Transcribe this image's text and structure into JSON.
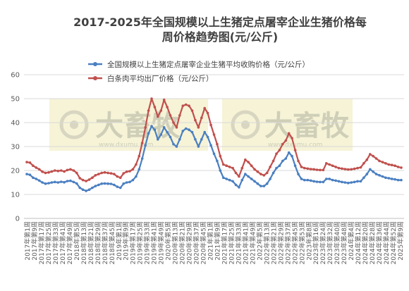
{
  "chart_data": {
    "type": "line",
    "title_line1": "2017-2025年全国规模以上生猪定点屠宰企业生猪价格每",
    "title_line2": "周价格趋势图(元/公斤)",
    "ylim": [
      0,
      60
    ],
    "yticks": [
      0,
      10,
      20,
      30,
      40,
      50,
      60
    ],
    "legend_position": "top-right",
    "grid": true,
    "watermark": {
      "text": "大畜牧",
      "url": "www.dxumu.com",
      "color": "#e6e2a8"
    },
    "x_tick_labels": [
      "2017年第1周",
      "2017年第9周",
      "2017年第17周",
      "2017年第25周",
      "2017年第33周",
      "2017年第41周",
      "2017年第49周",
      "2018年第5周",
      "2018年第13周",
      "2018年第21周",
      "2018年第29周",
      "2018年第37周",
      "2018年第45周",
      "2019年第1周",
      "2019年第9周",
      "2019年第17周",
      "2019年第25周",
      "2019年第33周",
      "2019年第41周",
      "2019年第49周",
      "2020年第5周",
      "2020年第13周",
      "2020年第21周",
      "2020年第29周",
      "2020年第37周",
      "2020年第45周",
      "2021年第1周",
      "2021年第9周",
      "2021年第17周",
      "2021年第25周",
      "2021年第33周",
      "2021年第41周",
      "2021年第49周",
      "2022年第5周",
      "2022年第13周",
      "2022年第21周",
      "2022年第29周",
      "2022年第37周",
      "2022年第45周",
      "2022年第53周",
      "2023年第8周",
      "2023年第16周",
      "2023年第24周",
      "2023年第32周",
      "2023年第40周",
      "2023年第48周",
      "2024年第4周",
      "2024年第12周",
      "2024年第20周",
      "2024年第28周",
      "2024年第36周",
      "2024年第44周",
      "2024年第52周",
      "2025年第9周"
    ],
    "series": [
      {
        "name": "全国规模以上生猪定点屠宰企业生猪平均收购价格（元/公斤）",
        "color": "#4a7fc1",
        "values": [
          18.5,
          18.2,
          17.0,
          16.5,
          15.8,
          15.0,
          14.5,
          14.7,
          15.0,
          15.2,
          15.0,
          15.3,
          15.1,
          15.6,
          15.7,
          15.2,
          14.6,
          12.8,
          12.0,
          11.5,
          12.0,
          12.8,
          13.5,
          14.0,
          14.5,
          14.6,
          14.5,
          14.4,
          14.0,
          13.2,
          12.8,
          14.5,
          15.0,
          15.2,
          16.0,
          17.5,
          20.5,
          25.0,
          30.5,
          35.5,
          38.5,
          37.0,
          33.0,
          35.0,
          38.0,
          36.0,
          34.0,
          31.0,
          30.0,
          33.0,
          36.5,
          37.5,
          37.0,
          36.0,
          33.0,
          30.0,
          33.0,
          36.0,
          34.0,
          30.5,
          27.0,
          24.0,
          20.0,
          17.0,
          16.5,
          16.0,
          15.5,
          14.0,
          13.0,
          16.0,
          18.5,
          17.5,
          16.5,
          15.5,
          14.5,
          13.5,
          13.5,
          14.5,
          16.5,
          19.0,
          21.0,
          22.0,
          24.0,
          25.0,
          27.5,
          26.0,
          22.0,
          18.5,
          16.5,
          16.0,
          16.0,
          15.8,
          15.5,
          15.3,
          15.2,
          15.2,
          16.5,
          16.5,
          16.0,
          15.8,
          15.5,
          15.2,
          15.0,
          14.8,
          15.0,
          15.2,
          15.5,
          15.5,
          17.0,
          18.5,
          20.5,
          19.5,
          18.5,
          18.0,
          17.5,
          17.0,
          16.8,
          16.5,
          16.3,
          16.0,
          16.0
        ]
      },
      {
        "name": "白条肉平均出厂价格（元/公斤）",
        "color": "#c0504d",
        "values": [
          23.5,
          23.3,
          22.0,
          21.2,
          20.5,
          19.5,
          19.0,
          19.2,
          19.6,
          20.0,
          19.8,
          20.0,
          19.6,
          20.2,
          20.5,
          20.0,
          19.0,
          16.8,
          16.0,
          15.6,
          16.2,
          17.0,
          18.0,
          18.5,
          19.0,
          19.2,
          19.0,
          18.8,
          18.5,
          17.5,
          17.0,
          18.8,
          19.5,
          19.7,
          20.5,
          22.5,
          26.0,
          31.5,
          38.0,
          45.0,
          50.0,
          46.5,
          42.5,
          45.0,
          49.5,
          46.5,
          43.0,
          40.0,
          38.0,
          43.0,
          47.0,
          47.5,
          47.0,
          45.0,
          41.0,
          38.0,
          42.0,
          46.0,
          44.0,
          39.0,
          35.0,
          31.0,
          26.0,
          22.5,
          22.0,
          21.5,
          21.0,
          19.0,
          17.5,
          21.0,
          24.5,
          23.5,
          22.0,
          20.5,
          19.5,
          18.5,
          18.0,
          19.0,
          21.5,
          24.0,
          27.0,
          28.5,
          31.0,
          32.5,
          35.5,
          33.5,
          28.5,
          24.0,
          21.5,
          21.0,
          20.8,
          20.6,
          20.5,
          20.3,
          20.2,
          20.2,
          23.0,
          22.5,
          22.0,
          21.5,
          21.0,
          20.8,
          20.6,
          20.4,
          20.5,
          20.7,
          21.0,
          21.3,
          23.0,
          24.5,
          26.8,
          26.0,
          25.0,
          24.0,
          23.5,
          23.0,
          22.5,
          22.3,
          22.0,
          21.5,
          21.2
        ]
      }
    ]
  }
}
